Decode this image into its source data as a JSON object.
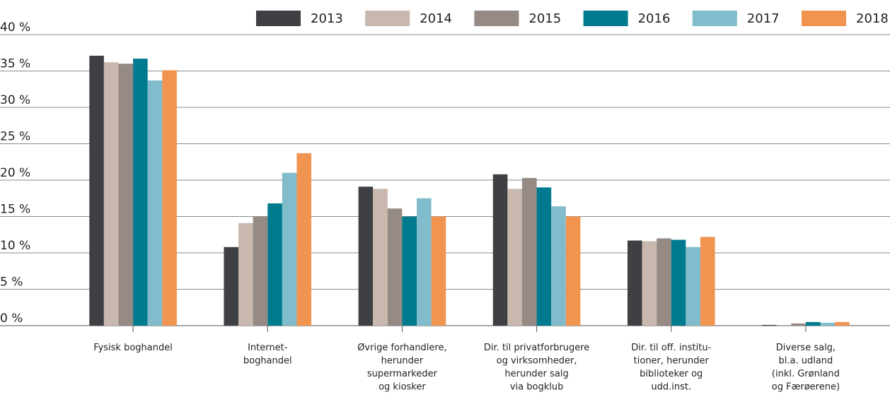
{
  "chart_data": {
    "type": "bar",
    "categories": [
      [
        "Fysisk boghandel"
      ],
      [
        "Internet-",
        "boghandel"
      ],
      [
        "Øvrige forhandlere,",
        "herunder",
        "supermarkeder",
        "og kiosker"
      ],
      [
        "Dir. til privatforbrugere",
        "og virksomheder,",
        "herunder salg",
        "via bogklub"
      ],
      [
        "Dir. til off. institu-",
        "tioner, herunder",
        "biblioteker og",
        "udd.inst."
      ],
      [
        "Diverse salg,",
        "bl.a. udland",
        "(inkl. Grønland",
        "og Færøerene)"
      ]
    ],
    "series": [
      {
        "name": "2013",
        "color": "#3f4043",
        "values": [
          37.1,
          10.8,
          19.1,
          20.8,
          11.7,
          0.1
        ]
      },
      {
        "name": "2014",
        "color": "#c8b8ae",
        "values": [
          36.2,
          14.1,
          18.8,
          18.8,
          11.6,
          0.1
        ]
      },
      {
        "name": "2015",
        "color": "#958a84",
        "values": [
          36.0,
          15.0,
          16.1,
          20.3,
          12.0,
          0.3
        ]
      },
      {
        "name": "2016",
        "color": "#007a8e",
        "values": [
          36.7,
          16.8,
          15.0,
          19.0,
          11.8,
          0.5
        ]
      },
      {
        "name": "2017",
        "color": "#80bccb",
        "values": [
          33.7,
          21.0,
          17.5,
          16.4,
          10.8,
          0.4
        ]
      },
      {
        "name": "2018",
        "color": "#f0944f",
        "values": [
          35.1,
          23.7,
          15.0,
          15.0,
          12.2,
          0.5
        ]
      }
    ],
    "ylim": [
      0,
      40
    ],
    "yticks": [
      {
        "value": 0,
        "label": "0 %"
      },
      {
        "value": 5,
        "label": "5 %"
      },
      {
        "value": 10,
        "label": "10 %"
      },
      {
        "value": 15,
        "label": "15 %"
      },
      {
        "value": 20,
        "label": "20 %"
      },
      {
        "value": 25,
        "label": "25 %"
      },
      {
        "value": 30,
        "label": "30 %"
      },
      {
        "value": 35,
        "label": "35 %"
      },
      {
        "value": 40,
        "label": "40 %"
      }
    ],
    "grid": true,
    "legend": "top"
  }
}
